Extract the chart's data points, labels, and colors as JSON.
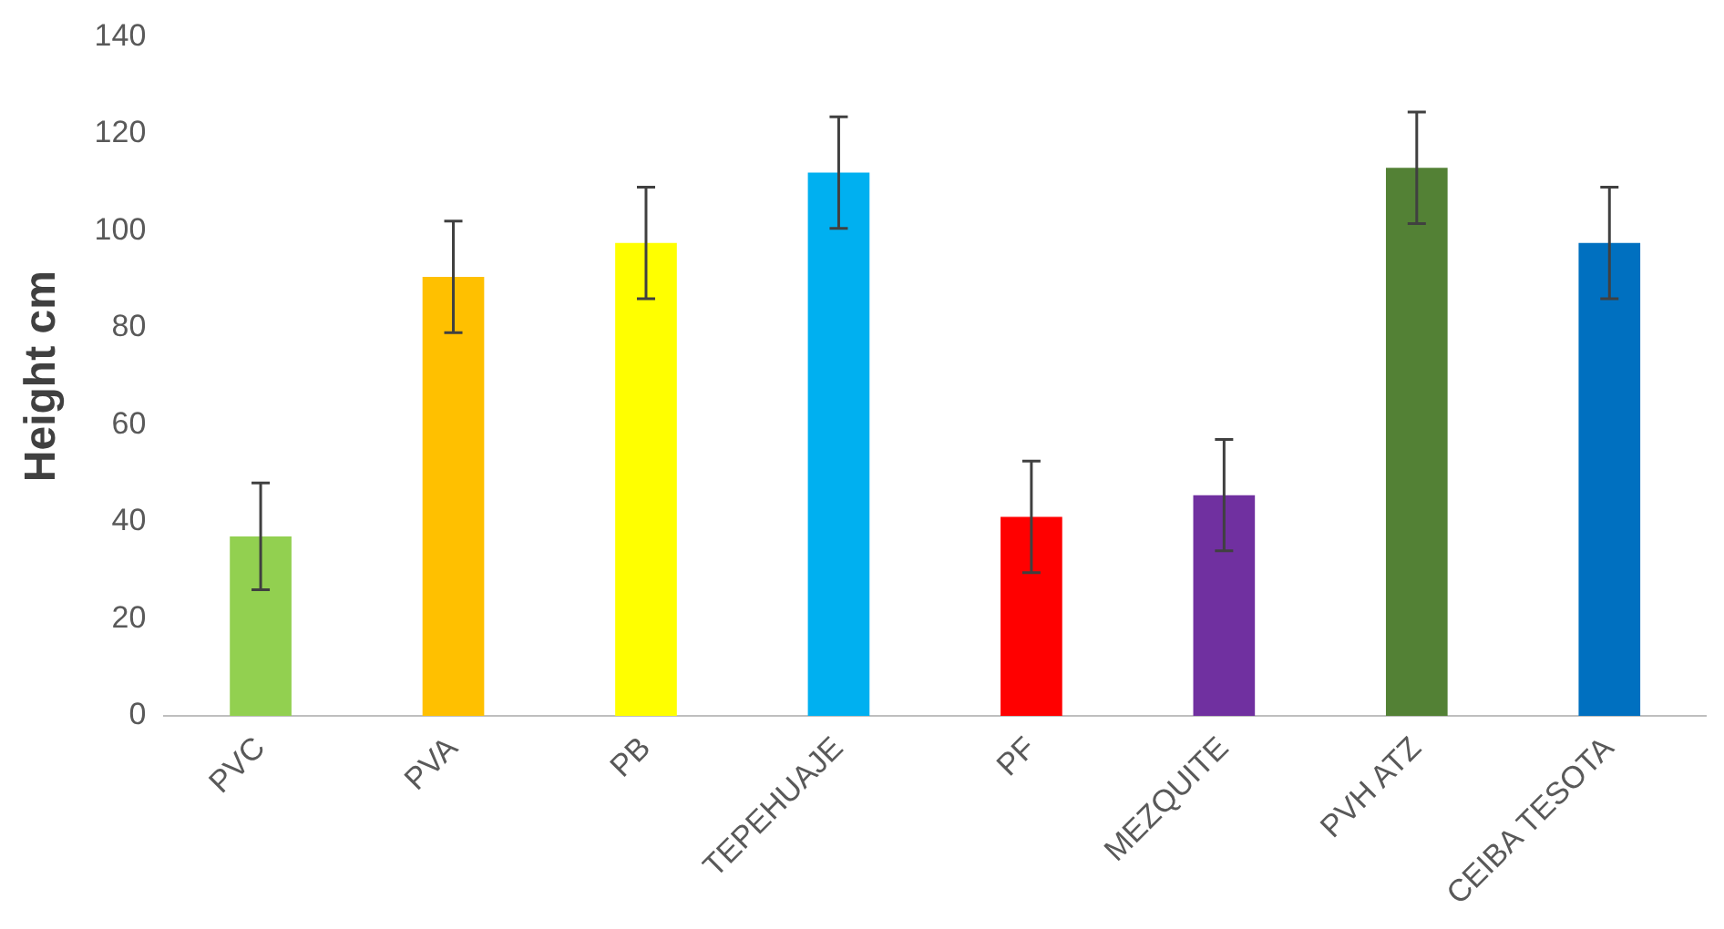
{
  "chart_data": {
    "type": "bar",
    "ylabel": "Height cm",
    "categories": [
      "PVC",
      "PVA",
      "PB",
      "TEPEHUAJE",
      "PF",
      "MEZQUITE",
      "PVH ATZ",
      "CEIBA TESOTA"
    ],
    "values": [
      37,
      90.5,
      97.5,
      112,
      41,
      45.5,
      113,
      97.5
    ],
    "colors": [
      "#92d050",
      "#ffc000",
      "#ffff00",
      "#00b0f0",
      "#ff0000",
      "#7030a0",
      "#538135",
      "#0070c0"
    ],
    "errors": [
      11,
      11.5,
      11.5,
      11.5,
      11.5,
      11.5,
      11.5,
      11.5
    ],
    "ylim": [
      0,
      140
    ],
    "yticks": [
      0,
      20,
      40,
      60,
      80,
      100,
      120,
      140
    ],
    "grid": false,
    "legend": false
  }
}
